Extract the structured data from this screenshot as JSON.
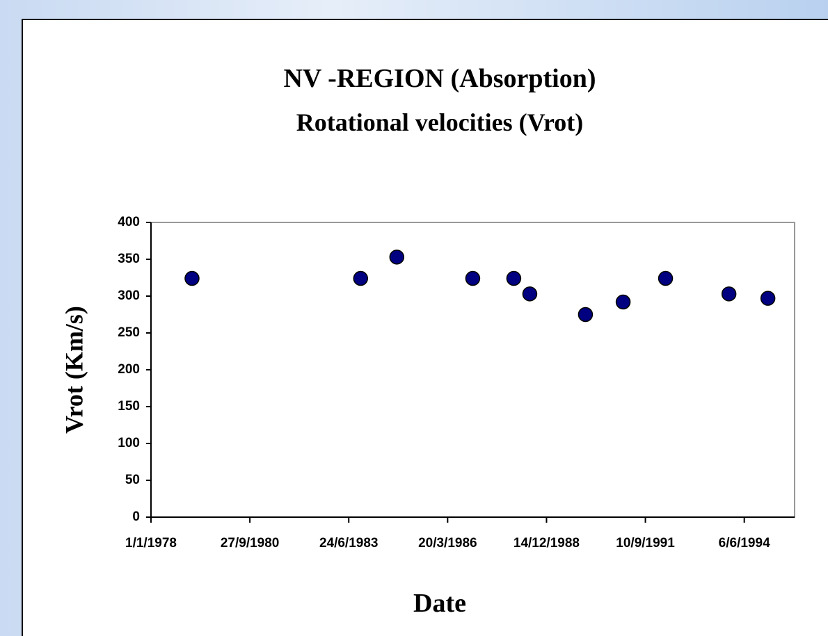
{
  "chart_data": {
    "type": "scatter",
    "title": "NV -REGION (Absorption)",
    "subtitle": "Rotational velocities (Vrot)",
    "x_label": "Date",
    "y_label": "Vrot (Km/s)",
    "x": [
      28906,
      30611,
      30977,
      31745,
      32160,
      32322,
      32885,
      33266,
      33695,
      34336,
      34730
    ],
    "values": [
      324,
      324,
      353,
      324,
      324,
      303,
      275,
      292,
      324,
      303,
      297
    ],
    "color": "#000080",
    "xlim": [
      28491,
      35000
    ],
    "xticks": [
      {
        "value": 28491,
        "label": "1/1/1978"
      },
      {
        "value": 29491,
        "label": "27/9/1980"
      },
      {
        "value": 30491,
        "label": "24/6/1983"
      },
      {
        "value": 31491,
        "label": "20/3/1986"
      },
      {
        "value": 32491,
        "label": "14/12/1988"
      },
      {
        "value": 33491,
        "label": "10/9/1991"
      },
      {
        "value": 34491,
        "label": "6/6/1994"
      }
    ],
    "ylim": [
      0,
      400
    ],
    "yticks": [
      0,
      50,
      100,
      150,
      200,
      250,
      300,
      350,
      400
    ]
  }
}
